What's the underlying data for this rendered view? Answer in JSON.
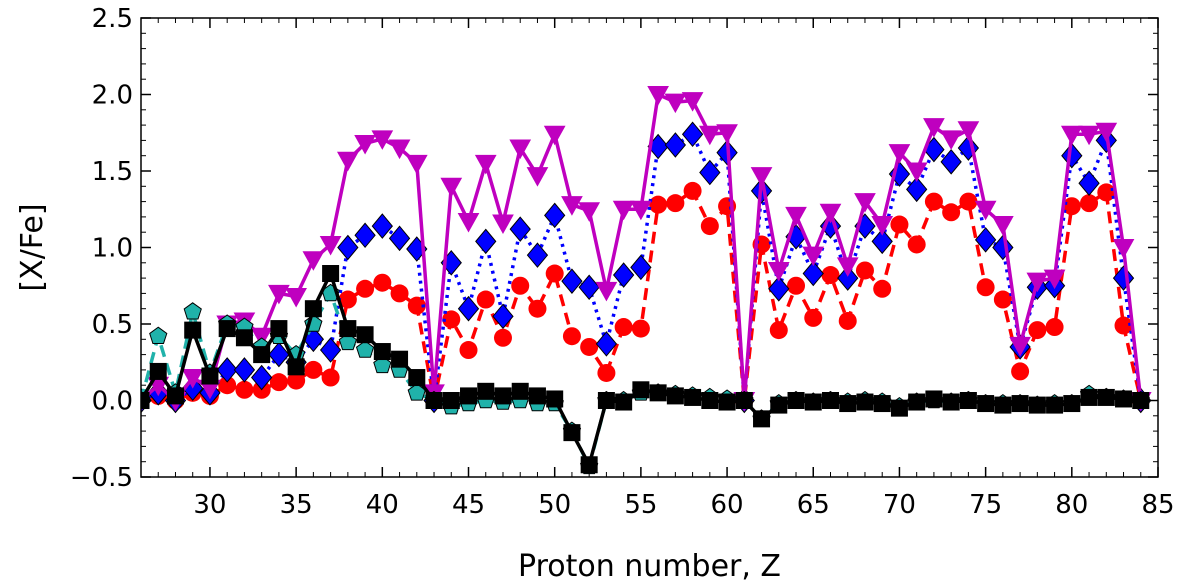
{
  "chart_data": {
    "type": "line",
    "title": "",
    "xlabel": "Proton number, Z",
    "ylabel": "[X/Fe]",
    "xlim": [
      26,
      85
    ],
    "ylim": [
      -0.5,
      2.5
    ],
    "x_ticks": [
      "30",
      "35",
      "40",
      "45",
      "50",
      "55",
      "60",
      "65",
      "70",
      "75",
      "80",
      "85"
    ],
    "y_ticks": [
      "−0.5",
      "0.0",
      "0.5",
      "1.0",
      "1.5",
      "2.0",
      "2.5"
    ],
    "grid": false,
    "legend": "none",
    "series": [
      {
        "marker": "diamond",
        "color": "#0000ff",
        "line_style": "dotted",
        "line_color": "#0000ff",
        "x": [
          26,
          27,
          28,
          29,
          30,
          31,
          32,
          33,
          34,
          35,
          36,
          37,
          38,
          39,
          40,
          41,
          42,
          43,
          44,
          45,
          46,
          47,
          48,
          49,
          50,
          51,
          52,
          53,
          54,
          55,
          56,
          57,
          58,
          59,
          60,
          61,
          62,
          63,
          64,
          65,
          66,
          67,
          68,
          69,
          70,
          71,
          72,
          73,
          74,
          75,
          76,
          77,
          78,
          79,
          80,
          81,
          82,
          83,
          84
        ],
        "y": [
          0.0,
          0.05,
          0.0,
          0.08,
          0.05,
          0.2,
          0.2,
          0.15,
          0.3,
          0.25,
          0.4,
          0.33,
          1.0,
          1.08,
          1.14,
          1.06,
          0.99,
          0.0,
          0.9,
          0.6,
          1.04,
          0.55,
          1.12,
          0.95,
          1.21,
          0.78,
          0.74,
          0.37,
          0.82,
          0.87,
          1.66,
          1.67,
          1.74,
          1.49,
          1.62,
          0.0,
          1.37,
          0.73,
          1.07,
          0.83,
          1.14,
          0.8,
          1.14,
          1.04,
          1.48,
          1.38,
          1.64,
          1.56,
          1.65,
          1.05,
          1.0,
          0.35,
          0.74,
          0.75,
          1.6,
          1.42,
          1.7,
          0.8,
          0.0
        ]
      },
      {
        "marker": "circle",
        "color": "#ff0000",
        "line_style": "dashed",
        "line_color": "#ff0000",
        "x": [
          26,
          27,
          28,
          29,
          30,
          31,
          32,
          33,
          34,
          35,
          36,
          37,
          38,
          39,
          40,
          41,
          42,
          43,
          44,
          45,
          46,
          47,
          48,
          49,
          50,
          51,
          52,
          53,
          54,
          55,
          56,
          57,
          58,
          59,
          60,
          61,
          62,
          63,
          64,
          65,
          66,
          67,
          68,
          69,
          70,
          71,
          72,
          73,
          74,
          75,
          76,
          77,
          78,
          79,
          80,
          81,
          82,
          83,
          84
        ],
        "y": [
          0.0,
          0.03,
          0.0,
          0.05,
          0.03,
          0.1,
          0.07,
          0.07,
          0.12,
          0.13,
          0.2,
          0.15,
          0.66,
          0.73,
          0.77,
          0.7,
          0.62,
          0.0,
          0.53,
          0.33,
          0.66,
          0.41,
          0.75,
          0.6,
          0.83,
          0.42,
          0.35,
          0.18,
          0.48,
          0.47,
          1.28,
          1.29,
          1.37,
          1.14,
          1.27,
          0.0,
          1.02,
          0.46,
          0.75,
          0.54,
          0.82,
          0.52,
          0.85,
          0.73,
          1.15,
          1.02,
          1.3,
          1.23,
          1.3,
          0.74,
          0.66,
          0.19,
          0.46,
          0.48,
          1.27,
          1.29,
          1.36,
          0.49,
          0.0
        ]
      },
      {
        "marker": "triangle-down",
        "color": "#bf00bf",
        "line_style": "solid",
        "line_color": "#bf00bf",
        "x": [
          26,
          27,
          28,
          29,
          30,
          31,
          32,
          33,
          34,
          35,
          36,
          37,
          38,
          39,
          40,
          41,
          42,
          43,
          44,
          45,
          46,
          47,
          48,
          49,
          50,
          51,
          52,
          53,
          54,
          55,
          56,
          57,
          58,
          59,
          60,
          61,
          62,
          63,
          64,
          65,
          66,
          67,
          68,
          69,
          70,
          71,
          72,
          73,
          74,
          75,
          76,
          77,
          78,
          79,
          80,
          81,
          82,
          83,
          84
        ],
        "y": [
          0.0,
          0.1,
          0.0,
          0.15,
          0.08,
          0.5,
          0.52,
          0.42,
          0.7,
          0.68,
          0.92,
          1.02,
          1.57,
          1.68,
          1.71,
          1.65,
          1.55,
          0.05,
          1.4,
          1.17,
          1.55,
          1.16,
          1.65,
          1.47,
          1.74,
          1.28,
          1.24,
          0.72,
          1.25,
          1.25,
          2.0,
          1.95,
          1.96,
          1.74,
          1.75,
          0.0,
          1.47,
          0.85,
          1.21,
          0.95,
          1.23,
          0.88,
          1.3,
          1.15,
          1.62,
          1.5,
          1.79,
          1.71,
          1.77,
          1.25,
          1.15,
          0.36,
          0.78,
          0.8,
          1.74,
          1.74,
          1.76,
          1.0,
          0.0
        ]
      },
      {
        "marker": "pentagon",
        "color": "#20b2aa",
        "line_style": "dashed",
        "line_color": "#20b2aa",
        "x": [
          26,
          27,
          28,
          29,
          30,
          31,
          32,
          33,
          34,
          35,
          36,
          37,
          38,
          39,
          40,
          41,
          42,
          43,
          44,
          45,
          46,
          47,
          48,
          49,
          50,
          51,
          52,
          53,
          54,
          55,
          56,
          57,
          58,
          59,
          60,
          61,
          62,
          63,
          64,
          65,
          66,
          67,
          68,
          69,
          70,
          71,
          72,
          73,
          74,
          75,
          76,
          77,
          78,
          79,
          80,
          81,
          82,
          83,
          84
        ],
        "y": [
          0.0,
          0.42,
          0.05,
          0.58,
          0.18,
          0.5,
          0.48,
          0.35,
          0.42,
          0.3,
          0.5,
          0.7,
          0.38,
          0.33,
          0.23,
          0.2,
          0.05,
          0.0,
          -0.04,
          -0.02,
          0.0,
          -0.01,
          0.0,
          -0.02,
          -0.02,
          -0.2,
          -0.43,
          0.0,
          0.0,
          0.05,
          0.05,
          0.04,
          0.03,
          0.02,
          0.01,
          0.0,
          -0.12,
          -0.02,
          0.0,
          -0.01,
          0.0,
          -0.01,
          0.0,
          -0.01,
          -0.04,
          -0.01,
          0.0,
          -0.01,
          0.0,
          -0.02,
          -0.02,
          -0.02,
          -0.03,
          -0.02,
          -0.02,
          0.04,
          0.02,
          0.01,
          0.0
        ]
      },
      {
        "marker": "square",
        "color": "#000000",
        "line_style": "solid",
        "line_color": "#000000",
        "x": [
          26,
          27,
          28,
          29,
          30,
          31,
          32,
          33,
          34,
          35,
          36,
          37,
          38,
          39,
          40,
          41,
          42,
          43,
          44,
          45,
          46,
          47,
          48,
          49,
          50,
          51,
          52,
          53,
          54,
          55,
          56,
          57,
          58,
          59,
          60,
          61,
          62,
          63,
          64,
          65,
          66,
          67,
          68,
          69,
          70,
          71,
          72,
          73,
          74,
          75,
          76,
          77,
          78,
          79,
          80,
          81,
          82,
          83,
          84
        ],
        "y": [
          0.0,
          0.19,
          0.03,
          0.46,
          0.16,
          0.47,
          0.41,
          0.3,
          0.47,
          0.22,
          0.6,
          0.83,
          0.47,
          0.43,
          0.32,
          0.27,
          0.15,
          0.0,
          0.0,
          0.03,
          0.06,
          0.03,
          0.06,
          0.03,
          0.01,
          -0.21,
          -0.42,
          0.0,
          -0.01,
          0.07,
          0.05,
          0.03,
          0.02,
          0.0,
          -0.01,
          0.0,
          -0.12,
          -0.03,
          0.0,
          -0.01,
          0.0,
          -0.02,
          -0.01,
          -0.02,
          -0.05,
          -0.01,
          0.01,
          -0.01,
          0.0,
          -0.02,
          -0.03,
          -0.02,
          -0.03,
          -0.03,
          -0.02,
          0.02,
          0.02,
          0.01,
          0.0
        ]
      }
    ]
  }
}
